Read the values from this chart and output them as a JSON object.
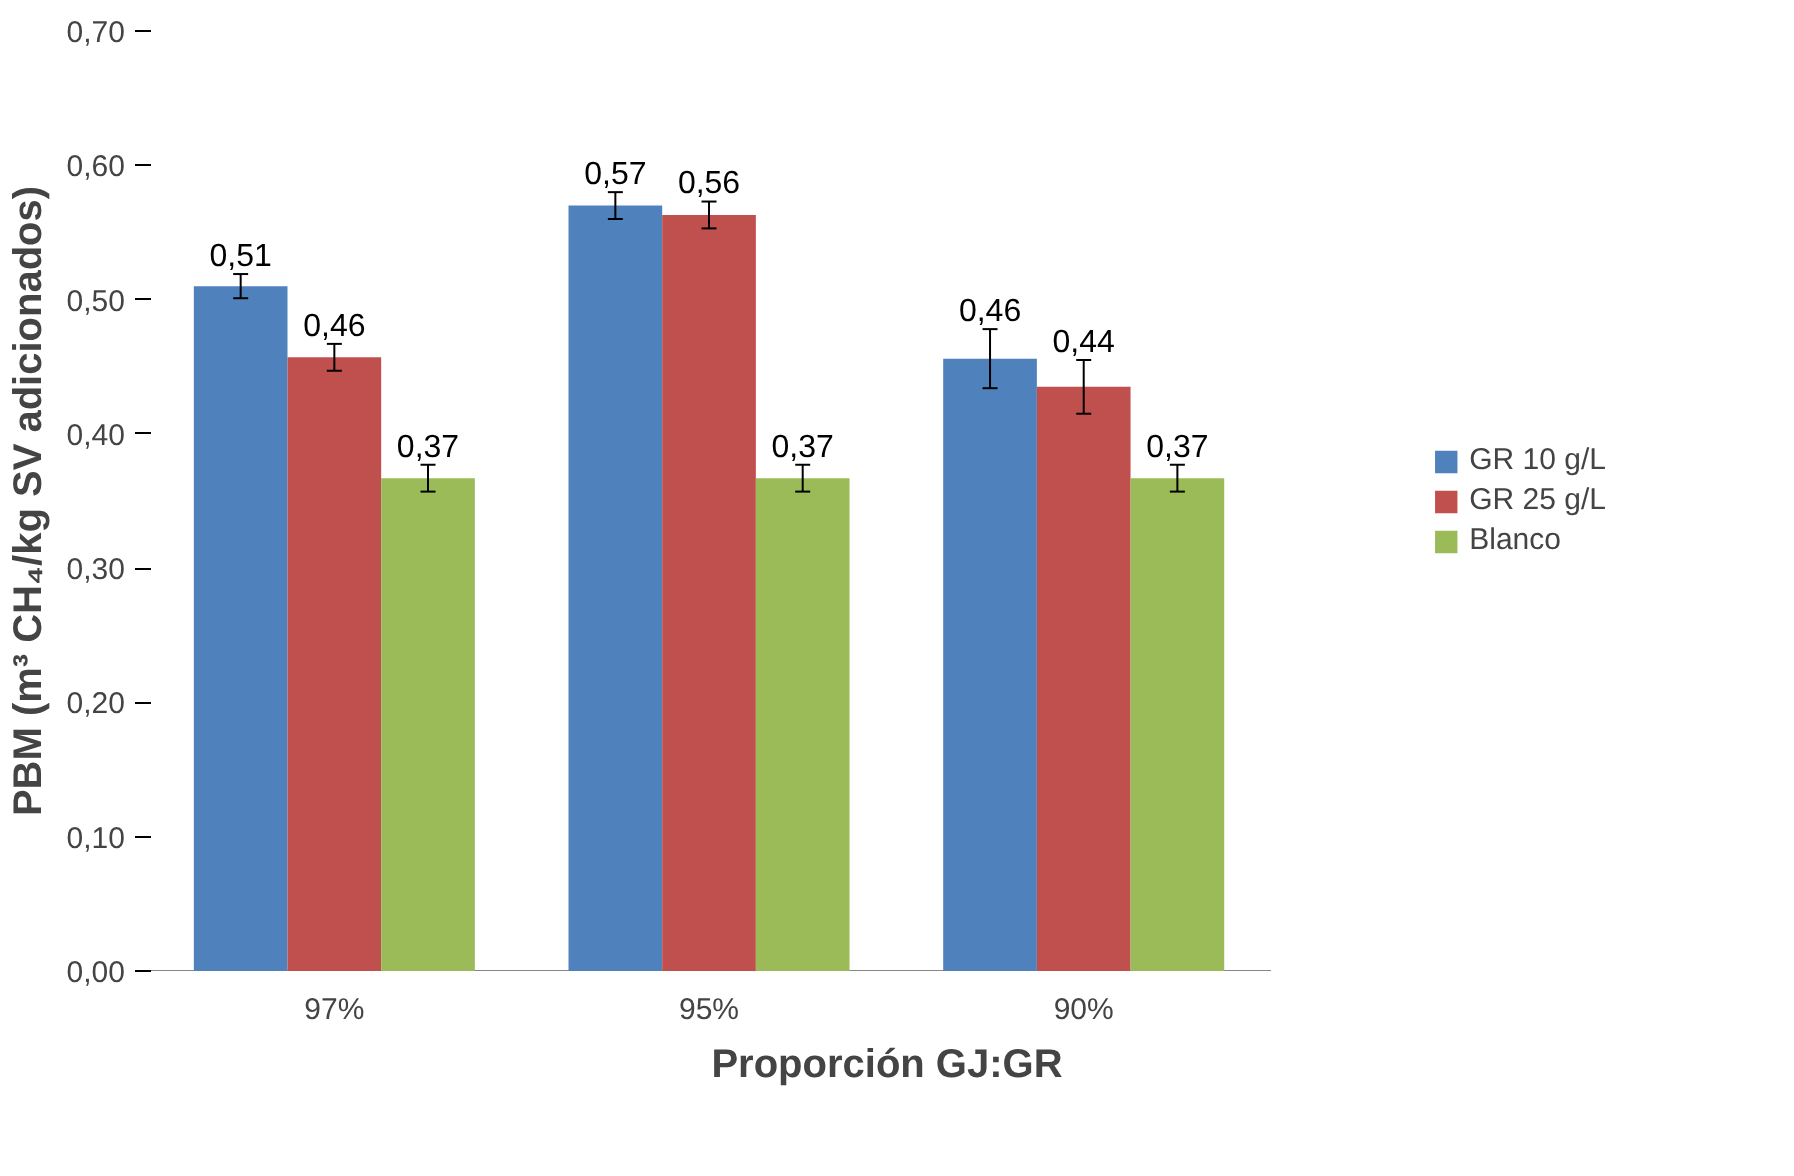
{
  "chart_data": {
    "type": "bar",
    "xlabel": "Proporción GJ:GR",
    "ylabel": "PBM (m³ CH₄/kg SV adicionados)",
    "categories": [
      "97%",
      "95%",
      "90%"
    ],
    "series": [
      {
        "name": "GR 10 g/L",
        "color": "#4f81bd",
        "values": [
          0.51,
          0.57,
          0.456
        ],
        "errors": [
          0.009,
          0.01,
          0.022
        ],
        "value_labels": [
          "0,51",
          "0,57",
          "0,46"
        ]
      },
      {
        "name": "GR 25 g/L",
        "color": "#c0504d",
        "values": [
          0.457,
          0.563,
          0.435
        ],
        "errors": [
          0.01,
          0.01,
          0.02
        ],
        "value_labels": [
          "0,46",
          "0,56",
          "0,44"
        ]
      },
      {
        "name": "Blanco",
        "color": "#9bbb59",
        "values": [
          0.367,
          0.367,
          0.367
        ],
        "errors": [
          0.01,
          0.01,
          0.01
        ],
        "value_labels": [
          "0,37",
          "0,37",
          "0,37"
        ]
      }
    ],
    "ylim": [
      0,
      0.7
    ],
    "yticks": [
      {
        "value": 0,
        "label": "0,00"
      },
      {
        "value": 0.1,
        "label": "0,10"
      },
      {
        "value": 0.2,
        "label": "0,20"
      },
      {
        "value": 0.3,
        "label": "0,30"
      },
      {
        "value": 0.4,
        "label": "0,40"
      },
      {
        "value": 0.5,
        "label": "0,50"
      },
      {
        "value": 0.6,
        "label": "0,60"
      },
      {
        "value": 0.7,
        "label": "0,70"
      }
    ],
    "grid": false,
    "legend": "right"
  }
}
